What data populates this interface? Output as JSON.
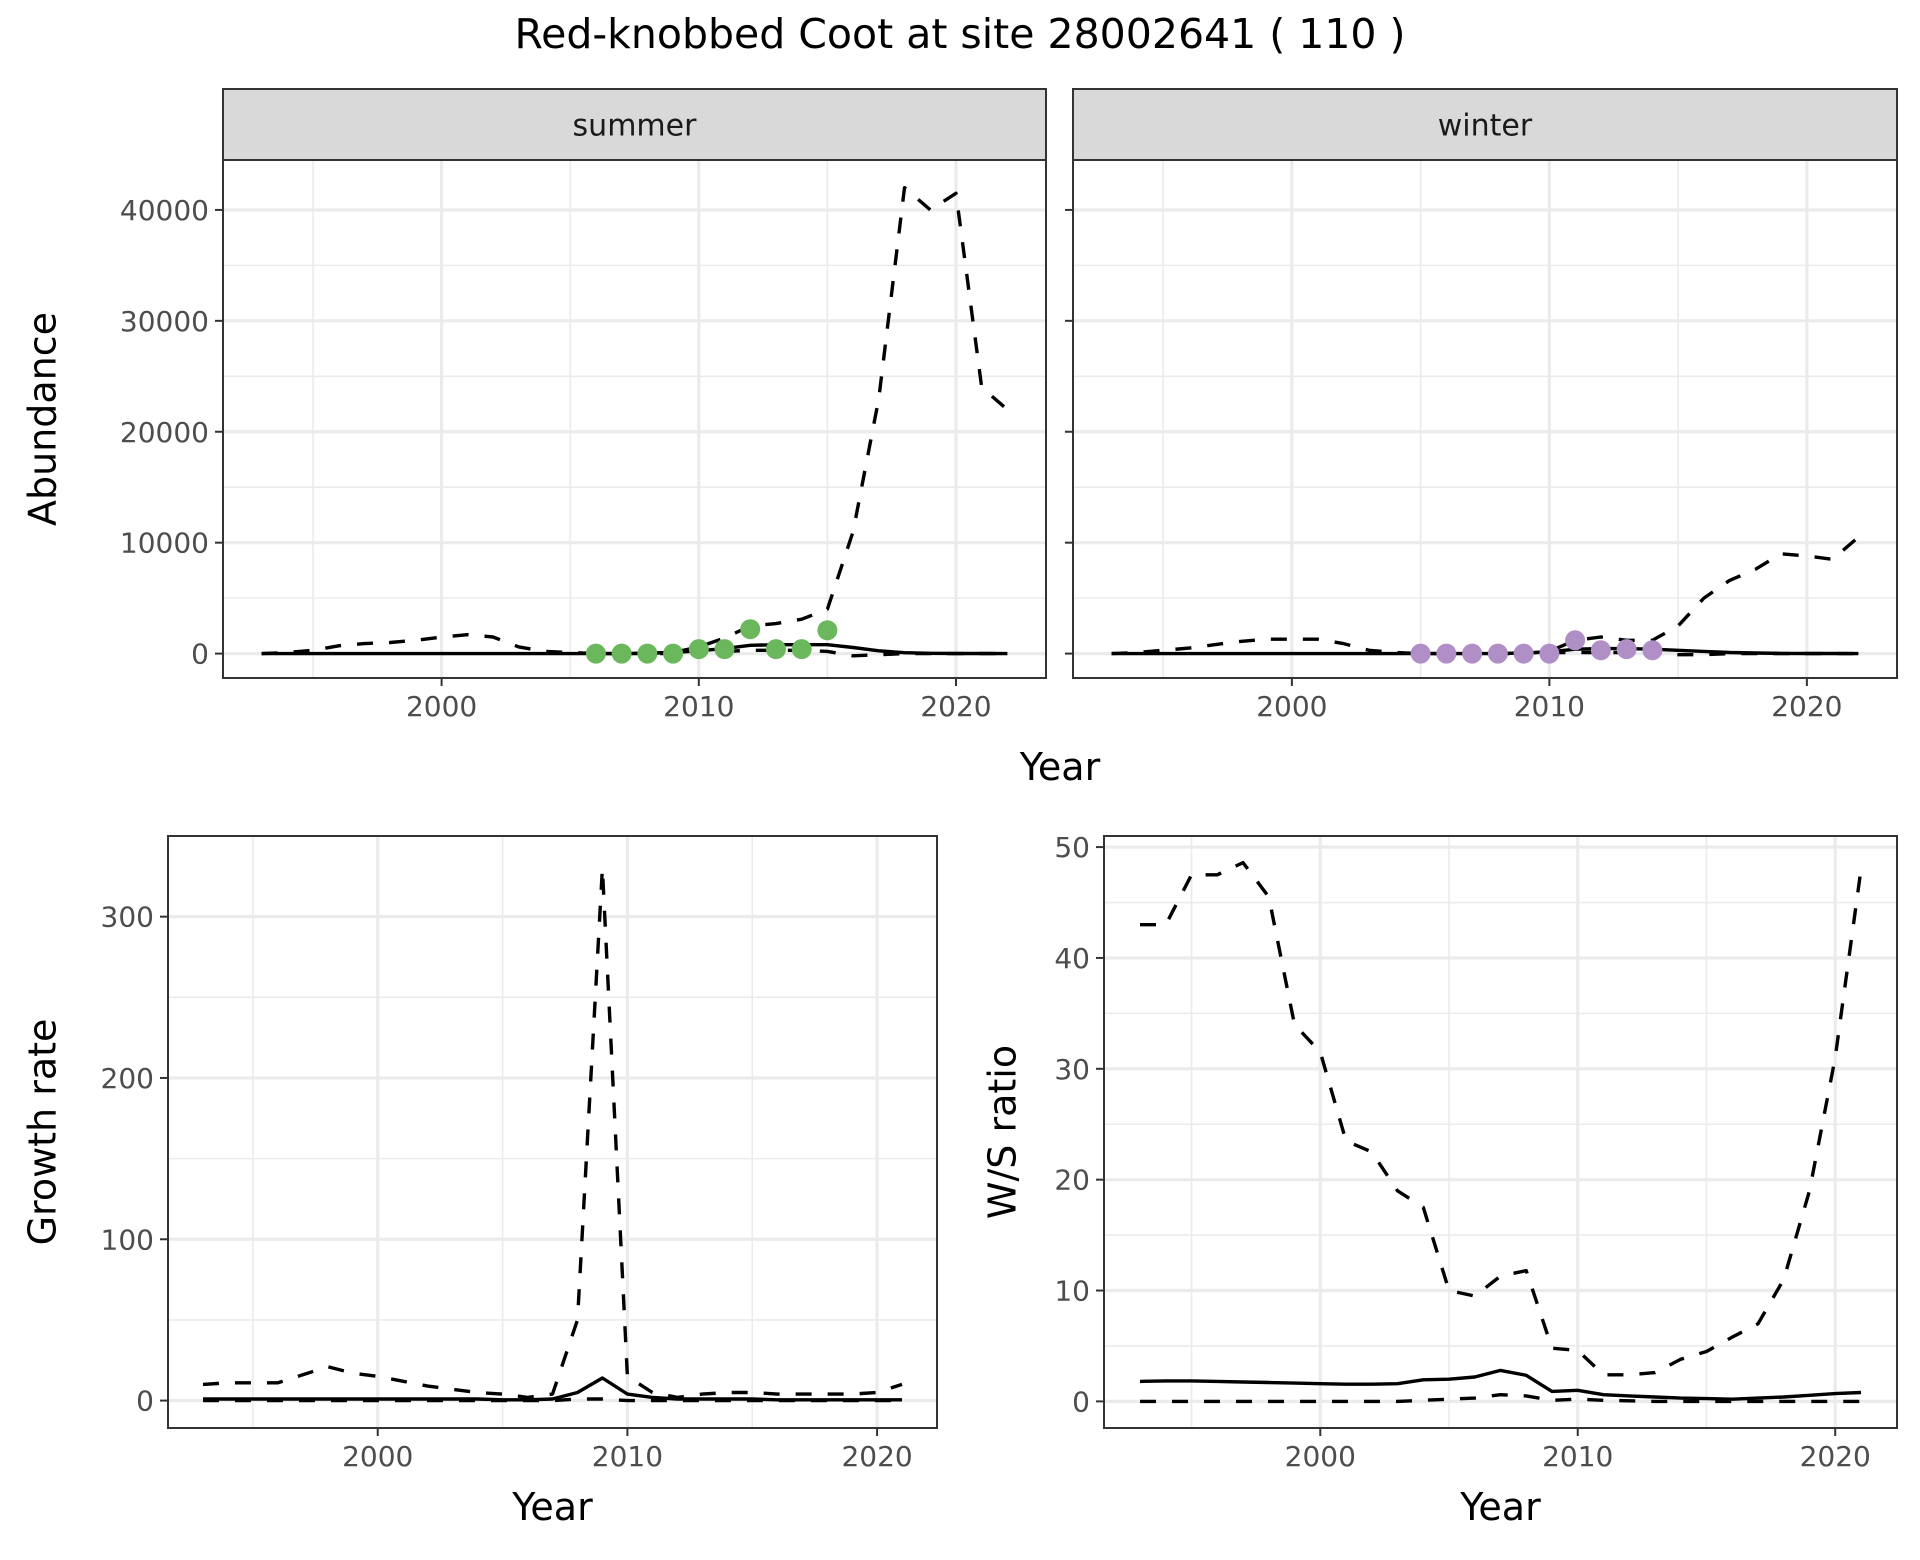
{
  "figure": {
    "title": "Red-knobbed Coot at site 28002641 ( 110 )"
  },
  "chart_data": [
    {
      "id": "abundance-summer",
      "type": "line",
      "facet": "summer",
      "title": "summer",
      "xlabel": "Year",
      "ylabel": "Abundance",
      "xlim": [
        1991.5,
        2023.5
      ],
      "ylim": [
        -2200,
        44500
      ],
      "xticks": [
        2000,
        2010,
        2020
      ],
      "yticks": [
        0,
        10000,
        20000,
        30000,
        40000
      ],
      "xtick_labels": [
        "2000",
        "2010",
        "2020"
      ],
      "ytick_labels": [
        "0",
        "10000",
        "20000",
        "30000",
        "40000"
      ],
      "grid": true,
      "series": [
        {
          "name": "upper",
          "style": "dashed",
          "x": [
            1993,
            1994,
            1995,
            1996,
            1997,
            1998,
            1999,
            2000,
            2001,
            2002,
            2003,
            2004,
            2005,
            2006,
            2007,
            2008,
            2009,
            2010,
            2011,
            2012,
            2013,
            2014,
            2015,
            2016,
            2017,
            2018,
            2019,
            2020,
            2021,
            2022
          ],
          "y": [
            0,
            100,
            300,
            700,
            900,
            1000,
            1200,
            1500,
            1700,
            1500,
            600,
            200,
            100,
            0,
            0,
            0,
            100,
            600,
            1400,
            2500,
            2700,
            3100,
            4000,
            11000,
            23000,
            42000,
            40000,
            41500,
            24000,
            22000
          ]
        },
        {
          "name": "mean",
          "style": "solid",
          "x": [
            1993,
            1994,
            1995,
            1996,
            1997,
            1998,
            1999,
            2000,
            2001,
            2002,
            2003,
            2004,
            2005,
            2006,
            2007,
            2008,
            2009,
            2010,
            2011,
            2012,
            2013,
            2014,
            2015,
            2016,
            2017,
            2018,
            2019,
            2020,
            2021,
            2022
          ],
          "y": [
            0,
            0,
            0,
            0,
            0,
            0,
            0,
            0,
            0,
            0,
            0,
            0,
            0,
            0,
            0,
            50,
            100,
            250,
            450,
            750,
            800,
            800,
            800,
            550,
            250,
            80,
            30,
            10,
            5,
            0
          ]
        },
        {
          "name": "lower",
          "style": "dashed",
          "x": [
            2006,
            2007,
            2008,
            2009,
            2010,
            2011,
            2012,
            2013,
            2014,
            2015,
            2016,
            2017,
            2018,
            2019,
            2020,
            2021,
            2022
          ],
          "y": [
            0,
            0,
            0,
            0,
            100,
            200,
            300,
            300,
            300,
            200,
            -200,
            -100,
            0,
            0,
            0,
            0,
            0
          ]
        },
        {
          "name": "observed",
          "style": "points",
          "color": "#6bb85c",
          "x": [
            2006,
            2007,
            2008,
            2009,
            2010,
            2011,
            2012,
            2013,
            2014,
            2015
          ],
          "y": [
            0,
            0,
            0,
            0,
            400,
            400,
            2200,
            400,
            400,
            2100
          ]
        }
      ]
    },
    {
      "id": "abundance-winter",
      "type": "line",
      "facet": "winter",
      "title": "winter",
      "xlabel": "Year",
      "ylabel": "Abundance",
      "xlim": [
        1991.5,
        2023.5
      ],
      "ylim": [
        -2200,
        44500
      ],
      "xticks": [
        2000,
        2010,
        2020
      ],
      "yticks": [
        0,
        10000,
        20000,
        30000,
        40000
      ],
      "xtick_labels": [
        "2000",
        "2010",
        "2020"
      ],
      "ytick_labels": [],
      "grid": true,
      "series": [
        {
          "name": "upper",
          "style": "dashed",
          "x": [
            1993,
            1994,
            1995,
            1996,
            1997,
            1998,
            1999,
            2000,
            2001,
            2002,
            2003,
            2004,
            2005,
            2006,
            2007,
            2008,
            2009,
            2010,
            2011,
            2012,
            2013,
            2014,
            2015,
            2016,
            2017,
            2018,
            2019,
            2020,
            2021,
            2022
          ],
          "y": [
            0,
            100,
            300,
            500,
            800,
            1100,
            1300,
            1300,
            1300,
            900,
            300,
            100,
            0,
            0,
            0,
            0,
            0,
            200,
            1200,
            1500,
            1200,
            1200,
            2500,
            5000,
            6600,
            7600,
            9000,
            8800,
            8500,
            10500
          ]
        },
        {
          "name": "mean",
          "style": "solid",
          "x": [
            1993,
            1994,
            1995,
            1996,
            1997,
            1998,
            1999,
            2000,
            2001,
            2002,
            2003,
            2004,
            2005,
            2006,
            2007,
            2008,
            2009,
            2010,
            2011,
            2012,
            2013,
            2014,
            2015,
            2016,
            2017,
            2018,
            2019,
            2020,
            2021,
            2022
          ],
          "y": [
            0,
            0,
            0,
            0,
            0,
            0,
            0,
            0,
            0,
            0,
            0,
            0,
            0,
            0,
            0,
            0,
            50,
            150,
            400,
            450,
            450,
            400,
            300,
            200,
            100,
            50,
            20,
            10,
            5,
            0
          ]
        },
        {
          "name": "lower",
          "style": "dashed",
          "x": [
            2010,
            2011,
            2012,
            2013,
            2014,
            2015,
            2016,
            2017,
            2018,
            2019,
            2020,
            2021,
            2022
          ],
          "y": [
            100,
            100,
            100,
            100,
            100,
            -100,
            -100,
            0,
            0,
            0,
            0,
            0,
            0
          ]
        },
        {
          "name": "observed",
          "style": "points",
          "color": "#b08fc7",
          "x": [
            2005,
            2006,
            2007,
            2008,
            2009,
            2010,
            2011,
            2012,
            2013,
            2014
          ],
          "y": [
            0,
            0,
            0,
            0,
            0,
            0,
            1200,
            300,
            400,
            300
          ]
        }
      ]
    },
    {
      "id": "growth-rate",
      "type": "line",
      "title": "",
      "xlabel": "Year",
      "ylabel": "Growth rate",
      "xlim": [
        1991.6,
        2022.4
      ],
      "ylim": [
        -17,
        350
      ],
      "xticks": [
        2000,
        2010,
        2020
      ],
      "yticks": [
        0,
        100,
        200,
        300
      ],
      "xtick_labels": [
        "2000",
        "2010",
        "2020"
      ],
      "ytick_labels": [
        "0",
        "100",
        "200",
        "300"
      ],
      "grid": true,
      "series": [
        {
          "name": "upper",
          "style": "dashed",
          "x": [
            1993,
            1994,
            1995,
            1996,
            1997,
            1998,
            1999,
            2000,
            2001,
            2002,
            2003,
            2004,
            2005,
            2006,
            2007,
            2008,
            2009,
            2010,
            2011,
            2012,
            2013,
            2014,
            2015,
            2016,
            2017,
            2018,
            2019,
            2020,
            2021
          ],
          "y": [
            10,
            11,
            11,
            11,
            16,
            21,
            17,
            15,
            12,
            9,
            7,
            5,
            4,
            2,
            4,
            50,
            330,
            15,
            5,
            2,
            4,
            5,
            5,
            4,
            4,
            4,
            4,
            5,
            10
          ]
        },
        {
          "name": "mean",
          "style": "solid",
          "x": [
            1993,
            1994,
            1995,
            1996,
            1997,
            1998,
            1999,
            2000,
            2001,
            2002,
            2003,
            2004,
            2005,
            2006,
            2007,
            2008,
            2009,
            2010,
            2011,
            2012,
            2013,
            2014,
            2015,
            2016,
            2017,
            2018,
            2019,
            2020,
            2021
          ],
          "y": [
            1,
            1,
            1,
            1,
            1,
            1,
            1,
            1,
            1,
            1,
            1,
            1,
            0.5,
            0.5,
            1,
            5,
            14,
            4,
            2,
            1,
            1,
            1,
            1,
            0.5,
            0.5,
            0.5,
            0.5,
            0.5,
            0.5
          ]
        },
        {
          "name": "lower",
          "style": "dashed",
          "x": [
            1993,
            1994,
            1995,
            1996,
            1997,
            1998,
            1999,
            2000,
            2001,
            2002,
            2003,
            2004,
            2005,
            2006,
            2007,
            2008,
            2009,
            2010,
            2011,
            2012,
            2013,
            2014,
            2015,
            2016,
            2017,
            2018,
            2019,
            2020,
            2021
          ],
          "y": [
            0,
            0,
            0,
            0,
            0,
            0,
            0,
            0,
            0,
            0,
            0,
            0,
            0,
            0,
            0,
            1,
            1,
            0,
            0,
            0,
            0,
            0,
            0,
            0,
            0,
            0,
            0,
            0,
            0
          ]
        }
      ]
    },
    {
      "id": "ws-ratio",
      "type": "line",
      "title": "",
      "xlabel": "Year",
      "ylabel": "W/S ratio",
      "xlim": [
        1991.6,
        2022.4
      ],
      "ylim": [
        -2.4,
        51
      ],
      "xticks": [
        2000,
        2010,
        2020
      ],
      "yticks": [
        0,
        10,
        20,
        30,
        40,
        50
      ],
      "xtick_labels": [
        "2000",
        "2010",
        "2020"
      ],
      "ytick_labels": [
        "0",
        "10",
        "20",
        "30",
        "40",
        "50"
      ],
      "grid": true,
      "series": [
        {
          "name": "upper",
          "style": "dashed",
          "x": [
            1993,
            1994,
            1995,
            1996,
            1997,
            1998,
            1999,
            2000,
            2001,
            2002,
            2003,
            2004,
            2005,
            2006,
            2007,
            2008,
            2009,
            2010,
            2011,
            2012,
            2013,
            2014,
            2015,
            2016,
            2017,
            2018,
            2019,
            2020,
            2021
          ],
          "y": [
            43,
            43,
            47.5,
            47.5,
            48.6,
            45.5,
            34,
            31.5,
            23.5,
            22.5,
            19,
            17.5,
            10,
            9.5,
            11.3,
            11.8,
            4.8,
            4.6,
            2.4,
            2.4,
            2.6,
            3.8,
            4.5,
            5.8,
            7,
            11,
            19,
            31,
            48
          ]
        },
        {
          "name": "mean",
          "style": "solid",
          "x": [
            1993,
            1994,
            1995,
            1996,
            1997,
            1998,
            1999,
            2000,
            2001,
            2002,
            2003,
            2004,
            2005,
            2006,
            2007,
            2008,
            2009,
            2010,
            2011,
            2012,
            2013,
            2014,
            2015,
            2016,
            2017,
            2018,
            2019,
            2020,
            2021
          ],
          "y": [
            1.8,
            1.85,
            1.85,
            1.8,
            1.75,
            1.7,
            1.65,
            1.6,
            1.55,
            1.55,
            1.6,
            1.95,
            2.0,
            2.2,
            2.8,
            2.35,
            0.9,
            1.0,
            0.6,
            0.5,
            0.4,
            0.3,
            0.25,
            0.2,
            0.3,
            0.4,
            0.55,
            0.7,
            0.8
          ]
        },
        {
          "name": "lower",
          "style": "dashed",
          "x": [
            1993,
            1994,
            1995,
            1996,
            1997,
            1998,
            1999,
            2000,
            2001,
            2002,
            2003,
            2004,
            2005,
            2006,
            2007,
            2008,
            2009,
            2010,
            2011,
            2012,
            2013,
            2014,
            2015,
            2016,
            2017,
            2018,
            2019,
            2020,
            2021
          ],
          "y": [
            0,
            0,
            0,
            0,
            0,
            0,
            0,
            0,
            0,
            0,
            0,
            0.1,
            0.2,
            0.3,
            0.6,
            0.5,
            0.1,
            0.2,
            0.1,
            0.05,
            0,
            0,
            0,
            0,
            0,
            0,
            0,
            0,
            0
          ]
        }
      ]
    }
  ]
}
